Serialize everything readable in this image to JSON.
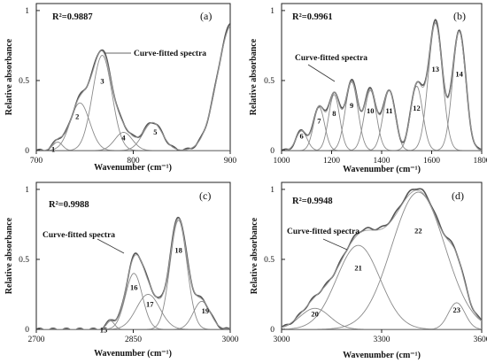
{
  "chart_data": [
    {
      "type": "line",
      "panel": "(a)",
      "r_squared": "R²=0.9887",
      "xlabel": "Wavenumber (cm⁻¹)",
      "ylabel": "Relative absorbance",
      "xlim": [
        700,
        900
      ],
      "ylim": [
        0,
        1.05
      ],
      "xticks": [
        700,
        800,
        900
      ],
      "yticks": [
        0,
        0.5,
        1
      ],
      "ytick_labels": [
        "0",
        "0.5",
        "1"
      ],
      "annotation": "Curve-fitted spectra",
      "peaks": [
        {
          "label": "1",
          "center": 722,
          "height": 0.06,
          "width": 5
        },
        {
          "label": "2",
          "center": 745,
          "height": 0.34,
          "width": 10
        },
        {
          "label": "3",
          "center": 768,
          "height": 0.68,
          "width": 10
        },
        {
          "label": "4",
          "center": 790,
          "height": 0.13,
          "width": 9
        },
        {
          "label": "5",
          "center": 820,
          "height": 0.2,
          "width": 10
        },
        {
          "label": "",
          "center": 902,
          "height": 0.9,
          "width": 15
        }
      ]
    },
    {
      "type": "line",
      "panel": "(b)",
      "r_squared": "R²=0.9961",
      "xlabel": "Wavenumber (cm⁻¹)",
      "ylabel": "Relative absorbance",
      "xlim": [
        1000,
        1800
      ],
      "ylim": [
        0,
        1.05
      ],
      "xticks": [
        1000,
        1200,
        1400,
        1600,
        1800
      ],
      "yticks": [
        0,
        0.5,
        1
      ],
      "ytick_labels": [
        "0",
        "0.5",
        "1"
      ],
      "annotation": "Curve-fitted spectra",
      "peaks": [
        {
          "label": "6",
          "center": 1080,
          "height": 0.14,
          "width": 22
        },
        {
          "label": "7",
          "center": 1150,
          "height": 0.31,
          "width": 22
        },
        {
          "label": "8",
          "center": 1210,
          "height": 0.4,
          "width": 22
        },
        {
          "label": "9",
          "center": 1280,
          "height": 0.49,
          "width": 25
        },
        {
          "label": "10",
          "center": 1355,
          "height": 0.43,
          "width": 24
        },
        {
          "label": "11",
          "center": 1430,
          "height": 0.43,
          "width": 24
        },
        {
          "label": "12",
          "center": 1540,
          "height": 0.46,
          "width": 24
        },
        {
          "label": "13",
          "center": 1615,
          "height": 0.91,
          "width": 28
        },
        {
          "label": "14",
          "center": 1710,
          "height": 0.85,
          "width": 26
        }
      ]
    },
    {
      "type": "line",
      "panel": "(c)",
      "r_squared": "R²=0.9988",
      "xlabel": "Wavenumber (cm⁻¹)",
      "ylabel": "Relative absorbance",
      "xlim": [
        2700,
        3000
      ],
      "ylim": [
        0,
        1.05
      ],
      "xticks": [
        2700,
        2850,
        3000
      ],
      "yticks": [
        0,
        0.5,
        1
      ],
      "ytick_labels": [
        "0",
        "0.5",
        "1"
      ],
      "annotation": "Curve-fitted spectra",
      "peaks": [
        {
          "label": "15",
          "center": 2815,
          "height": 0.06,
          "width": 6
        },
        {
          "label": "16",
          "center": 2851,
          "height": 0.4,
          "width": 13
        },
        {
          "label": "17",
          "center": 2873,
          "height": 0.25,
          "width": 18
        },
        {
          "label": "18",
          "center": 2920,
          "height": 0.78,
          "width": 13
        },
        {
          "label": "19",
          "center": 2956,
          "height": 0.2,
          "width": 13
        }
      ]
    },
    {
      "type": "line",
      "panel": "(d)",
      "r_squared": "R²=0.9948",
      "xlabel": "Wavenumber (cm⁻¹)",
      "ylabel": "Relative absorbance",
      "xlim": [
        3000,
        3600
      ],
      "ylim": [
        0,
        1.05
      ],
      "xticks": [
        3000,
        3300,
        3600
      ],
      "yticks": [
        0,
        0.5,
        1
      ],
      "ytick_labels": [
        "0",
        "0.5",
        "1"
      ],
      "annotation": "Curve-fitted spectra",
      "peaks": [
        {
          "label": "20",
          "center": 3100,
          "height": 0.15,
          "width": 45
        },
        {
          "label": "21",
          "center": 3230,
          "height": 0.6,
          "width": 65
        },
        {
          "label": "22",
          "center": 3410,
          "height": 0.98,
          "width": 80
        },
        {
          "label": "23",
          "center": 3525,
          "height": 0.19,
          "width": 25
        }
      ]
    }
  ]
}
